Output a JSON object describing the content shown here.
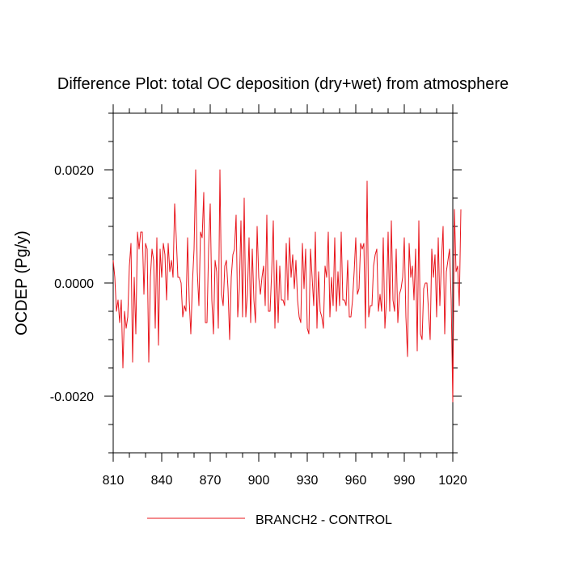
{
  "chart_data": {
    "type": "line",
    "title": "Difference Plot: total OC deposition (dry+wet) from atmosphere",
    "xlabel": "",
    "ylabel": "OCDEP  (Pg/y)",
    "xlim": [
      810,
      1020
    ],
    "ylim": [
      -0.003,
      0.003
    ],
    "x_ticks": [
      810,
      840,
      870,
      900,
      930,
      960,
      990,
      1020
    ],
    "x_tick_labels": [
      "810",
      "840",
      "870",
      "900",
      "930",
      "960",
      "990",
      "1020"
    ],
    "y_ticks": [
      -0.002,
      0.0,
      0.002
    ],
    "y_tick_labels": [
      "-0.0020",
      "0.0000",
      "0.0020"
    ],
    "grid": false,
    "legend_position": "bottom-center",
    "series": [
      {
        "name": "BRANCH2 - CONTROL",
        "color": "#e8141b",
        "x_start": 810,
        "x_step": 1,
        "values": [
          0.0004,
          0.0001,
          -0.0005,
          -0.0003,
          -0.0007,
          -0.0003,
          -0.0015,
          -0.0005,
          -0.0008,
          -0.0006,
          0.0003,
          0.0007,
          -0.0014,
          0.0001,
          -0.0009,
          0.0009,
          0.0006,
          0.0009,
          0.0009,
          -0.0002,
          0.0007,
          0.0006,
          -0.0014,
          0.0001,
          0.0006,
          0.0004,
          -0.0008,
          0.0008,
          -0.0011,
          0.0006,
          0.0001,
          0.0007,
          0.0005,
          -0.0003,
          0.0007,
          0.0002,
          0.0004,
          0.0001,
          0.0014,
          0.0008,
          0.0001,
          0.0001,
          0.0,
          -0.0006,
          -0.0004,
          -0.0005,
          0.0008,
          -0.0003,
          -0.0009,
          0.0,
          0.0006,
          0.002,
          0.0002,
          -0.0004,
          0.0009,
          0.0008,
          0.0016,
          -0.0007,
          -0.0007,
          0.0006,
          0.0014,
          -0.0003,
          -0.0009,
          0.0004,
          0.0002,
          -0.0008,
          0.002,
          -0.0002,
          -0.0004,
          0.0003,
          0.0004,
          -0.0001,
          -0.001,
          0.0001,
          0.0005,
          0.0006,
          0.0012,
          -0.0006,
          -0.0001,
          0.0011,
          -0.0006,
          0.0015,
          -0.0006,
          -0.0002,
          0.0008,
          -0.0007,
          0.0006,
          -0.0003,
          -0.0007,
          0.001,
          0.0001,
          -0.0002,
          0.0001,
          0.0003,
          -0.0004,
          0.0012,
          -0.0005,
          -0.0005,
          0.0002,
          0.0011,
          -0.0008,
          0.0004,
          -0.0007,
          0.0003,
          -0.0003,
          -0.0003,
          -0.0004,
          0.0007,
          -0.0003,
          0.0008,
          0.0001,
          0.0005,
          -0.0001,
          0.0004,
          -0.0003,
          -0.0006,
          -0.0007,
          0.0007,
          -0.0001,
          0.0006,
          -0.0008,
          -0.0009,
          0.0006,
          0.0001,
          -0.0004,
          0.0009,
          -0.0008,
          0.0002,
          -0.0005,
          -0.0006,
          -0.0008,
          0.0003,
          0.0001,
          0.0009,
          -0.0006,
          0.0001,
          -0.0004,
          0.0008,
          -0.0005,
          0.0002,
          -0.0004,
          0.0009,
          -0.0003,
          -0.0003,
          -0.0004,
          0.0004,
          -0.0006,
          -0.0006,
          -0.0003,
          0.0002,
          0.0008,
          -0.0002,
          -0.0001,
          0.0007,
          0.0006,
          0.0007,
          -0.0008,
          0.0018,
          -0.0006,
          -0.0004,
          -0.0004,
          0.0003,
          0.0005,
          0.0006,
          -0.0005,
          -0.0002,
          -0.0005,
          0.0008,
          -0.0008,
          -0.0003,
          0.0009,
          -0.0005,
          0.0011,
          -0.0003,
          -0.0005,
          0.0006,
          -0.0007,
          -0.0002,
          -0.0001,
          0.0001,
          0.0008,
          -0.0006,
          -0.0013,
          0.0007,
          0.0001,
          0.0003,
          -0.0003,
          0.0006,
          -0.0012,
          0.0011,
          -0.0009,
          -0.001,
          -0.0001,
          0.0,
          0.0,
          -0.0005,
          -0.001,
          0.0006,
          0.0001,
          0.0005,
          -0.0006,
          0.0008,
          -0.0004,
          0.0004,
          0.001,
          -0.0009,
          0.0002,
          0.0004,
          0.0006,
          -0.0003,
          -0.0021,
          0.0013,
          0.0002,
          0.0003,
          -0.0004,
          0.0013
        ]
      }
    ]
  }
}
